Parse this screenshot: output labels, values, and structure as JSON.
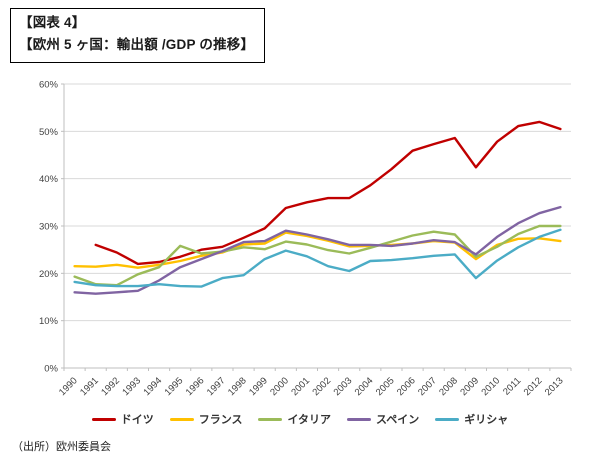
{
  "header": {
    "line1": "【図表 4】",
    "line2": "【欧州 5 ヶ国：輸出額 /GDP の推移】"
  },
  "footer": {
    "source": "（出所）欧州委員会"
  },
  "chart_data": {
    "type": "line",
    "title": "欧州5ヶ国：輸出額/GDPの推移",
    "xlabel": "",
    "ylabel": "",
    "ylim": [
      0,
      60
    ],
    "y_ticks": [
      "0%",
      "10%",
      "20%",
      "30%",
      "40%",
      "50%",
      "60%"
    ],
    "grid": true,
    "legend_position": "bottom",
    "x": [
      1990,
      1991,
      1992,
      1993,
      1994,
      1995,
      1996,
      1997,
      1998,
      1999,
      2000,
      2001,
      2002,
      2003,
      2004,
      2005,
      2006,
      2007,
      2008,
      2009,
      2010,
      2011,
      2012,
      2013
    ],
    "series": [
      {
        "name": "ドイツ",
        "color": "#C00000",
        "values": [
          null,
          26.0,
          24.4,
          22.0,
          22.4,
          23.5,
          25.0,
          25.6,
          27.5,
          29.5,
          33.8,
          35.0,
          35.9,
          35.9,
          38.6,
          42.0,
          45.9,
          47.3,
          48.6,
          42.4,
          47.8,
          51.1,
          52.0,
          50.5
        ]
      },
      {
        "name": "フランス",
        "color": "#FFC000",
        "values": [
          21.5,
          21.4,
          21.8,
          21.2,
          21.8,
          22.6,
          23.7,
          24.4,
          26.1,
          26.3,
          28.6,
          27.9,
          26.9,
          25.7,
          25.8,
          26.0,
          26.3,
          26.8,
          26.5,
          23.0,
          26.0,
          27.3,
          27.4,
          26.8
        ]
      },
      {
        "name": "イタリア",
        "color": "#9BBB59",
        "values": [
          19.3,
          17.7,
          17.5,
          19.8,
          21.3,
          25.8,
          24.2,
          24.6,
          25.5,
          25.1,
          26.7,
          26.1,
          24.9,
          24.2,
          25.4,
          26.7,
          28.0,
          28.8,
          28.2,
          23.5,
          25.6,
          28.3,
          30.0,
          30.0
        ]
      },
      {
        "name": "スペイン",
        "color": "#8064A2",
        "values": [
          16.0,
          15.7,
          16.0,
          16.3,
          18.5,
          21.3,
          23.0,
          24.7,
          26.6,
          26.8,
          29.0,
          28.2,
          27.2,
          26.0,
          26.0,
          25.8,
          26.3,
          27.0,
          26.6,
          24.0,
          27.7,
          30.6,
          32.7,
          34.0
        ]
      },
      {
        "name": "ギリシャ",
        "color": "#4BACC6",
        "values": [
          18.2,
          17.5,
          17.3,
          17.3,
          17.7,
          17.3,
          17.2,
          19.0,
          19.6,
          23.0,
          24.8,
          23.6,
          21.5,
          20.5,
          22.6,
          22.8,
          23.2,
          23.7,
          24.0,
          19.0,
          22.7,
          25.5,
          27.7,
          29.2
        ]
      }
    ],
    "axis_color": "#BFBFBF",
    "grid_color": "#D9D9D9",
    "tick_label_color": "#404040"
  }
}
